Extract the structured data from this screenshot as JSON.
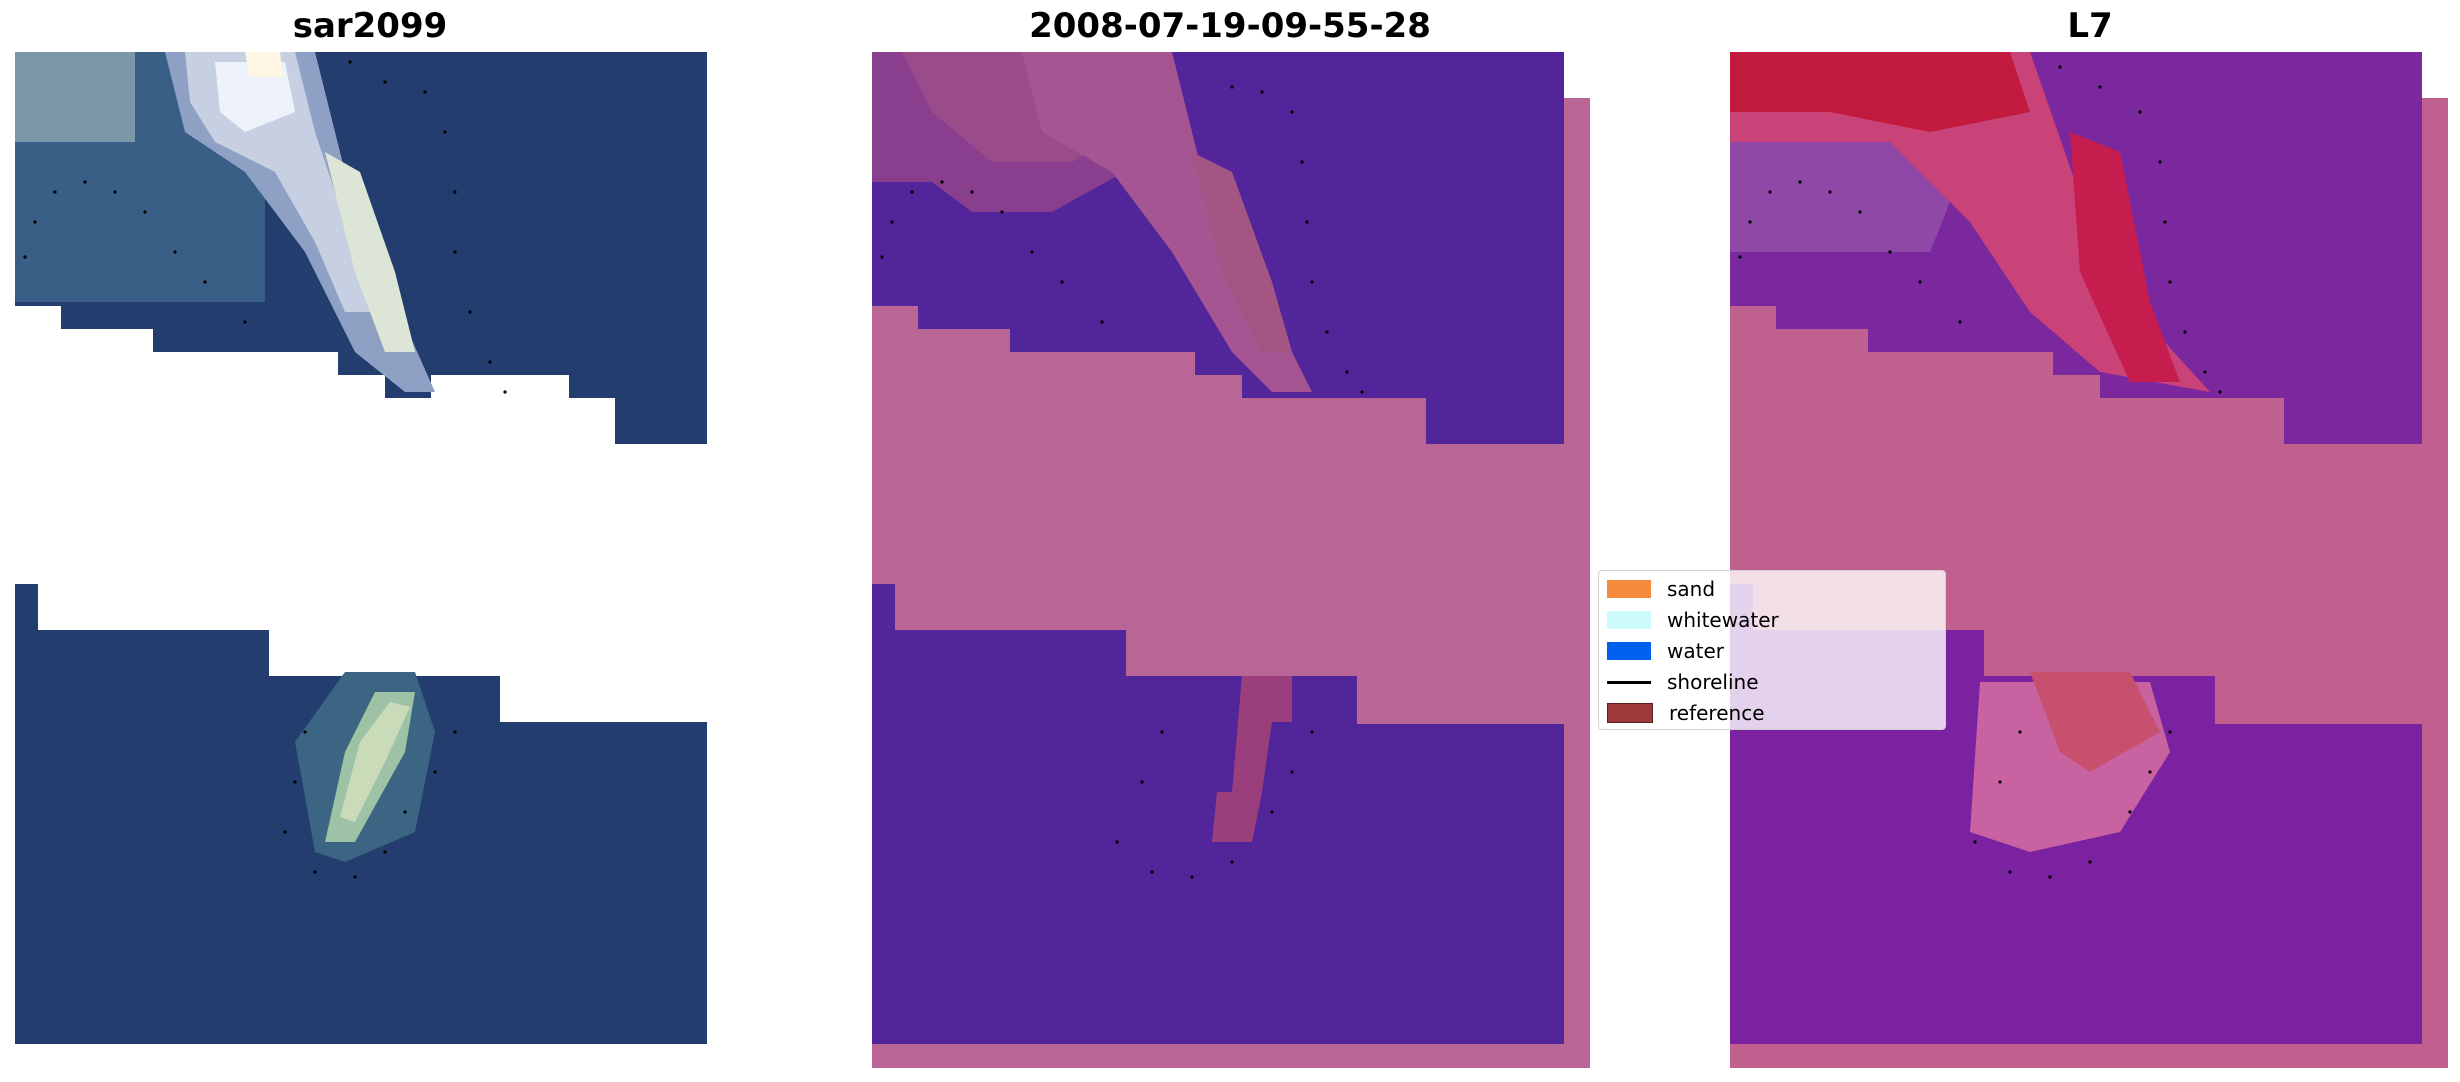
{
  "panels": [
    {
      "id": "rgb",
      "title": "sar2099"
    },
    {
      "id": "classified",
      "title": "2008-07-19-09-55-28"
    },
    {
      "id": "index",
      "title": "L7"
    }
  ],
  "legend": {
    "items": [
      {
        "label": "sand",
        "kind": "patch",
        "color": "#f58a3c"
      },
      {
        "label": "whitewater",
        "kind": "patch",
        "color": "#cdfbfb"
      },
      {
        "label": "water",
        "kind": "patch",
        "color": "#0060f0"
      },
      {
        "label": "shoreline",
        "kind": "line",
        "color": "#000000"
      },
      {
        "label": "reference",
        "kind": "patch",
        "color": "#9e3a3a"
      }
    ]
  },
  "colors": {
    "water_rgb": "#233e6e",
    "classified_water": "#53259a",
    "classified_pink": "#b96595",
    "index_pink": "#c0608e",
    "index_red": "#c11a3e",
    "index_purple": "#7a22a0"
  }
}
